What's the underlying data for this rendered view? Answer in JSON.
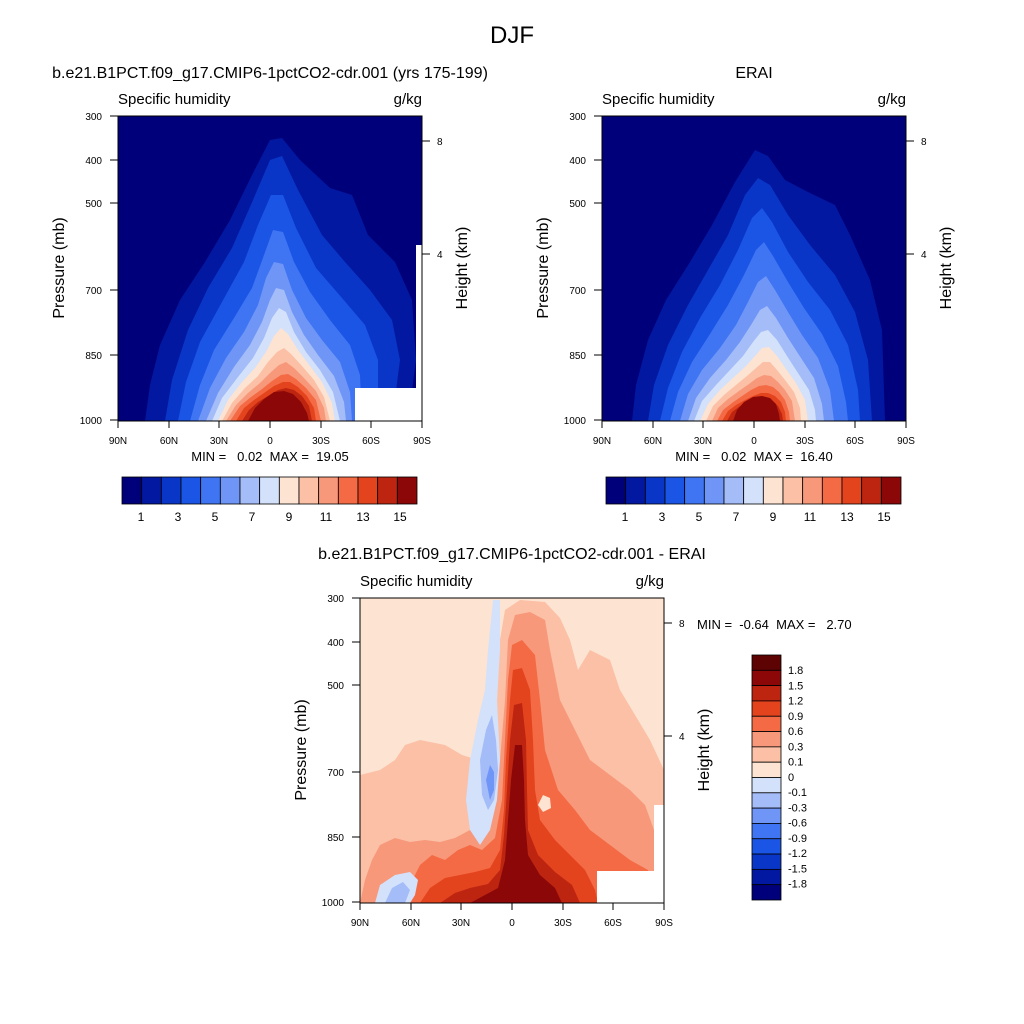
{
  "figure_title": "DJF",
  "chart_data": [
    {
      "type": "heatmap",
      "title": "b.e21.B1PCT.f09_g17.CMIP6-1pctCO2-cdr.001 (yrs 175-199)",
      "left_label": "Specific humidity",
      "right_label": "g/kg",
      "ylabel": "Pressure (mb)",
      "y2label": "Height (km)",
      "x_ticks": [
        "90N",
        "60N",
        "30N",
        "0",
        "30S",
        "60S",
        "90S"
      ],
      "y_ticks": [
        "300",
        "400",
        "500",
        "700",
        "850",
        "1000"
      ],
      "y2_ticks": [
        "8",
        "4"
      ],
      "stats_text": "MIN =   0.02  MAX =  19.05",
      "min": 0.02,
      "max": 19.05,
      "colorbar_labels": [
        "1",
        "3",
        "5",
        "7",
        "9",
        "11",
        "13",
        "15"
      ],
      "levels": [
        1,
        2,
        3,
        4,
        5,
        6,
        7,
        8,
        9,
        10,
        11,
        12,
        13,
        14,
        15
      ]
    },
    {
      "type": "heatmap",
      "title": "ERAI",
      "left_label": "Specific humidity",
      "right_label": "g/kg",
      "ylabel": "Pressure (mb)",
      "y2label": "Height (km)",
      "x_ticks": [
        "90N",
        "60N",
        "30N",
        "0",
        "30S",
        "60S",
        "90S"
      ],
      "y_ticks": [
        "300",
        "400",
        "500",
        "700",
        "850",
        "1000"
      ],
      "y2_ticks": [
        "8",
        "4"
      ],
      "stats_text": "MIN =   0.02  MAX =  16.40",
      "min": 0.02,
      "max": 16.4,
      "colorbar_labels": [
        "1",
        "3",
        "5",
        "7",
        "9",
        "11",
        "13",
        "15"
      ],
      "levels": [
        1,
        2,
        3,
        4,
        5,
        6,
        7,
        8,
        9,
        10,
        11,
        12,
        13,
        14,
        15
      ]
    },
    {
      "type": "heatmap",
      "title": "b.e21.B1PCT.f09_g17.CMIP6-1pctCO2-cdr.001 - ERAI",
      "left_label": "Specific humidity",
      "right_label": "g/kg",
      "ylabel": "Pressure (mb)",
      "y2label": "Height (km)",
      "x_ticks": [
        "90N",
        "60N",
        "30N",
        "0",
        "30S",
        "60S",
        "90S"
      ],
      "y_ticks": [
        "300",
        "400",
        "500",
        "700",
        "850",
        "1000"
      ],
      "y2_ticks": [
        "8",
        "4"
      ],
      "stats_text": "MIN =  -0.64  MAX =   2.70",
      "min": -0.64,
      "max": 2.7,
      "colorbar_labels": [
        "1.8",
        "1.5",
        "1.2",
        "0.9",
        "0.6",
        "0.3",
        "0.1",
        "0",
        "-0.1",
        "-0.3",
        "-0.6",
        "-0.9",
        "-1.2",
        "-1.5",
        "-1.8"
      ],
      "levels": [
        -1.8,
        -1.5,
        -1.2,
        -0.9,
        -0.6,
        -0.3,
        -0.1,
        0,
        0.1,
        0.3,
        0.6,
        0.9,
        1.2,
        1.5,
        1.8
      ]
    }
  ],
  "colors": {
    "abs_scale": [
      "#00007a",
      "#0218a0",
      "#0a36c8",
      "#1b55e6",
      "#3f74f3",
      "#6f96f7",
      "#a4bcf8",
      "#d3e1fb",
      "#fde3d1",
      "#fbc0a6",
      "#f8987a",
      "#f46a44",
      "#e3441e",
      "#bd2511",
      "#8c0808"
    ],
    "diff_scale": [
      "#00007a",
      "#0218a0",
      "#0a36c8",
      "#1b55e6",
      "#3f74f3",
      "#6f96f7",
      "#a4bcf8",
      "#d3e1fb",
      "#fde3d1",
      "#fbc0a6",
      "#f8987a",
      "#f46a44",
      "#e3441e",
      "#bd2511",
      "#8c0808",
      "#5e0303"
    ]
  }
}
